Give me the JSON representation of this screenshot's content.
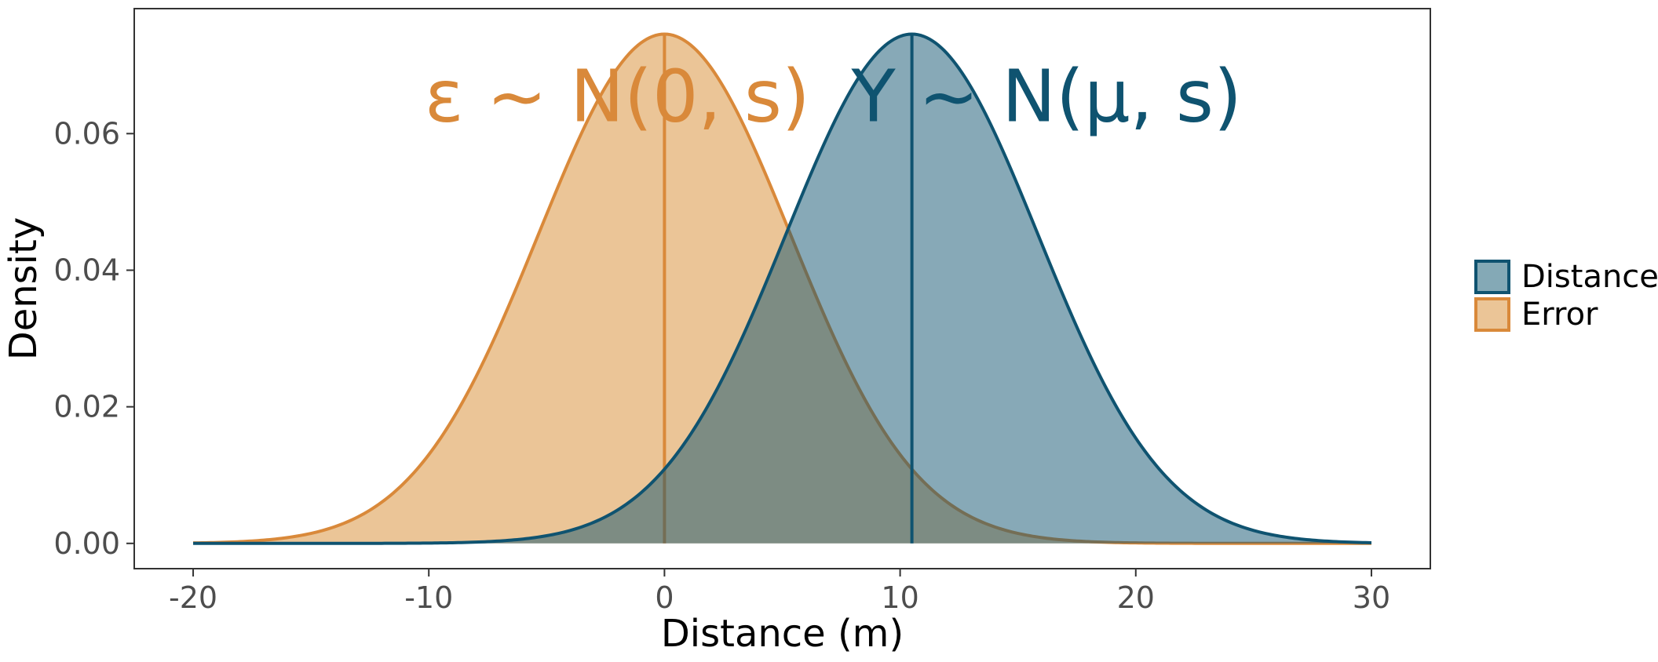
{
  "chart_data": {
    "type": "area",
    "title": "",
    "xlabel": "Distance (m)",
    "ylabel": "Density",
    "xlim": [
      -22.5,
      32.5
    ],
    "ylim": [
      -0.0037,
      0.0783
    ],
    "x_ticks": [
      -20,
      -10,
      0,
      10,
      20,
      30
    ],
    "x_tick_labels": [
      "-20",
      "-10",
      "0",
      "10",
      "20",
      "30"
    ],
    "y_ticks": [
      0,
      0.02,
      0.04,
      0.06
    ],
    "y_tick_labels": [
      "0.00",
      "0.02",
      "0.04",
      "0.06"
    ],
    "grid": false,
    "legend_position": "right",
    "x_range": [
      -20,
      30
    ],
    "series": [
      {
        "name": "Error",
        "mean": 0,
        "sd": 5.35,
        "color": "#d9893a",
        "fill": "#ebc597",
        "fill_opacity": 1.0,
        "mean_line": 0
      },
      {
        "name": "Distance",
        "mean": 10.5,
        "sd": 5.35,
        "color": "#0f5370",
        "fill": "#0f5370",
        "fill_opacity": 0.5,
        "mean_line": 10.5
      }
    ],
    "legend": [
      {
        "label": "Distance",
        "color": "#0f5370",
        "fill": "#84a9b6"
      },
      {
        "label": "Error",
        "color": "#d9893a",
        "fill": "#ebc597"
      }
    ],
    "annotations": [
      {
        "text": "ε ~ N(0, s)",
        "color": "#d9893a",
        "x": -2,
        "y": 0.0655,
        "anchor": "middle"
      },
      {
        "text": "Y ~ N(μ, s)",
        "color": "#0f5370",
        "x": 24.5,
        "y": 0.0655,
        "anchor": "end"
      }
    ]
  }
}
